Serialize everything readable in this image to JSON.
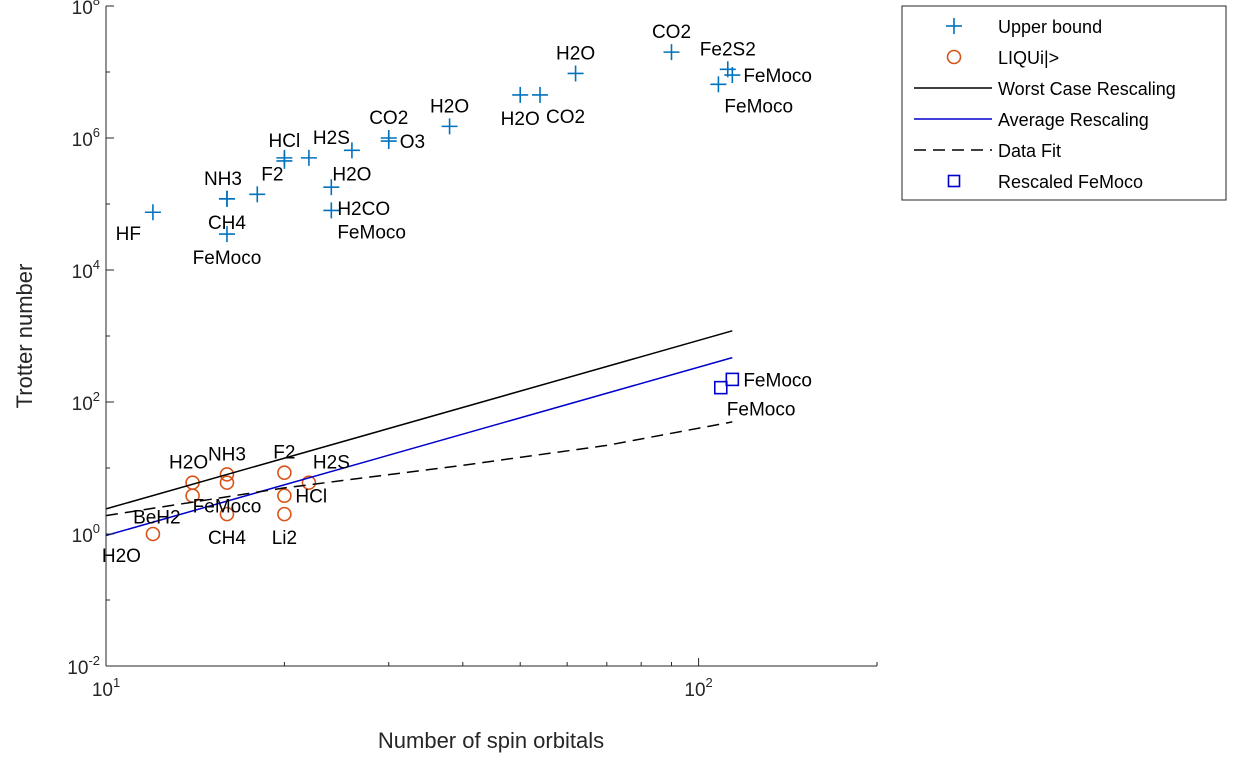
{
  "chart_data": {
    "type": "scatter",
    "xlabel": "Number of spin orbitals",
    "ylabel": "Trotter number",
    "x_scale": "log",
    "y_scale": "log",
    "xlim": [
      10,
      200
    ],
    "ylim": [
      0.01,
      100000000
    ],
    "x_ticks": [
      {
        "value": 10,
        "base": "10",
        "exp": "1"
      },
      {
        "value": 100,
        "base": "10",
        "exp": "2"
      }
    ],
    "y_ticks": [
      {
        "value": 0.01,
        "base": "10",
        "exp": "-2"
      },
      {
        "value": 1,
        "base": "10",
        "exp": "0"
      },
      {
        "value": 100,
        "base": "10",
        "exp": "2"
      },
      {
        "value": 10000,
        "base": "10",
        "exp": "4"
      },
      {
        "value": 1000000,
        "base": "10",
        "exp": "6"
      },
      {
        "value": 100000000,
        "base": "10",
        "exp": "8"
      }
    ],
    "grid": false,
    "legend_position": "outside-top-right",
    "colors": {
      "upper_bound": "#0072BD",
      "liqui": "#D95319",
      "worst_case": "#000000",
      "average": "#0000CC",
      "data_fit": "#000000",
      "rescaled": "#0000CC",
      "axes": "#262626"
    },
    "legend": [
      {
        "label": "Upper bound",
        "marker": "plus"
      },
      {
        "label": "LIQUi|>",
        "marker": "circle"
      },
      {
        "label": "Worst Case Rescaling",
        "marker": "solid-line"
      },
      {
        "label": "Average Rescaling",
        "marker": "blue-line"
      },
      {
        "label": "Data Fit",
        "marker": "dashed-line"
      },
      {
        "label": "Rescaled FeMoco",
        "marker": "square"
      }
    ],
    "series": [
      {
        "name": "Upper bound",
        "marker": "plus",
        "points": [
          {
            "x": 12,
            "y": 75000,
            "label": "HF",
            "lpos": "below-left"
          },
          {
            "x": 16,
            "y": 35000,
            "label": "FeMoco",
            "lpos": "below"
          },
          {
            "x": 16,
            "y": 120000,
            "label": "NH3",
            "lpos": "above-left"
          },
          {
            "x": 16,
            "y": 120000,
            "label": "CH4",
            "lpos": "below"
          },
          {
            "x": 18,
            "y": 140000,
            "label": "F2",
            "lpos": "above-right"
          },
          {
            "x": 20,
            "y": 450000,
            "label": "HCl",
            "lpos": "above"
          },
          {
            "x": 20,
            "y": 500000,
            "label": "",
            "lpos": "none"
          },
          {
            "x": 22,
            "y": 500000,
            "label": "H2S",
            "lpos": "above-right"
          },
          {
            "x": 24,
            "y": 180000,
            "label": "H2CO",
            "lpos": "below-right"
          },
          {
            "x": 24,
            "y": 80000,
            "label": "FeMoco",
            "lpos": "below-right"
          },
          {
            "x": 26,
            "y": 650000,
            "label": "H2O",
            "lpos": "below"
          },
          {
            "x": 30,
            "y": 1000000,
            "label": "CO2",
            "lpos": "above"
          },
          {
            "x": 30,
            "y": 900000,
            "label": "O3",
            "lpos": "right"
          },
          {
            "x": 38,
            "y": 1500000,
            "label": "H2O",
            "lpos": "above"
          },
          {
            "x": 50,
            "y": 4500000,
            "label": "H2O",
            "lpos": "below"
          },
          {
            "x": 54,
            "y": 4500000,
            "label": "CO2",
            "lpos": "below-right"
          },
          {
            "x": 62,
            "y": 9500000,
            "label": "H2O",
            "lpos": "above"
          },
          {
            "x": 90,
            "y": 20000000,
            "label": "CO2",
            "lpos": "above"
          },
          {
            "x": 108,
            "y": 6500000,
            "label": "FeMoco",
            "lpos": "below-right"
          },
          {
            "x": 112,
            "y": 11000000,
            "label": "Fe2S2",
            "lpos": "above"
          },
          {
            "x": 114,
            "y": 9000000,
            "label": "FeMoco",
            "lpos": "right"
          }
        ]
      },
      {
        "name": "LIQUi|>",
        "marker": "circle",
        "points": [
          {
            "x": 12,
            "y": 1,
            "label": "H2O",
            "lpos": "below-left"
          },
          {
            "x": 14,
            "y": 6,
            "label": "H2O",
            "lpos": "above-left"
          },
          {
            "x": 14,
            "y": 3.8,
            "label": "BeH2",
            "lpos": "below-left"
          },
          {
            "x": 16,
            "y": 8,
            "label": "NH3",
            "lpos": "above"
          },
          {
            "x": 16,
            "y": 6,
            "label": "FeMoco",
            "lpos": "below"
          },
          {
            "x": 16,
            "y": 2,
            "label": "CH4",
            "lpos": "below"
          },
          {
            "x": 20,
            "y": 8.5,
            "label": "F2",
            "lpos": "above"
          },
          {
            "x": 20,
            "y": 3.8,
            "label": "HCl",
            "lpos": "right"
          },
          {
            "x": 20,
            "y": 2,
            "label": "Li2",
            "lpos": "below"
          },
          {
            "x": 22,
            "y": 6,
            "label": "H2S",
            "lpos": "above-right"
          }
        ]
      },
      {
        "name": "Worst Case Rescaling",
        "line": "solid",
        "points": [
          {
            "x": 10,
            "y": 2.4
          },
          {
            "x": 114,
            "y": 1200
          }
        ]
      },
      {
        "name": "Average Rescaling",
        "line": "solid",
        "points": [
          {
            "x": 10,
            "y": 0.95
          },
          {
            "x": 114,
            "y": 470
          }
        ]
      },
      {
        "name": "Data Fit",
        "line": "dashed",
        "points": [
          {
            "x": 10,
            "y": 1.9
          },
          {
            "x": 20,
            "y": 5
          },
          {
            "x": 40,
            "y": 11
          },
          {
            "x": 70,
            "y": 22
          },
          {
            "x": 114,
            "y": 50
          }
        ]
      },
      {
        "name": "Rescaled FeMoco",
        "marker": "square",
        "points": [
          {
            "x": 114,
            "y": 220,
            "label": "FeMoco",
            "lpos": "right"
          },
          {
            "x": 109,
            "y": 165,
            "label": "FeMoco",
            "lpos": "below-right"
          }
        ]
      }
    ]
  }
}
